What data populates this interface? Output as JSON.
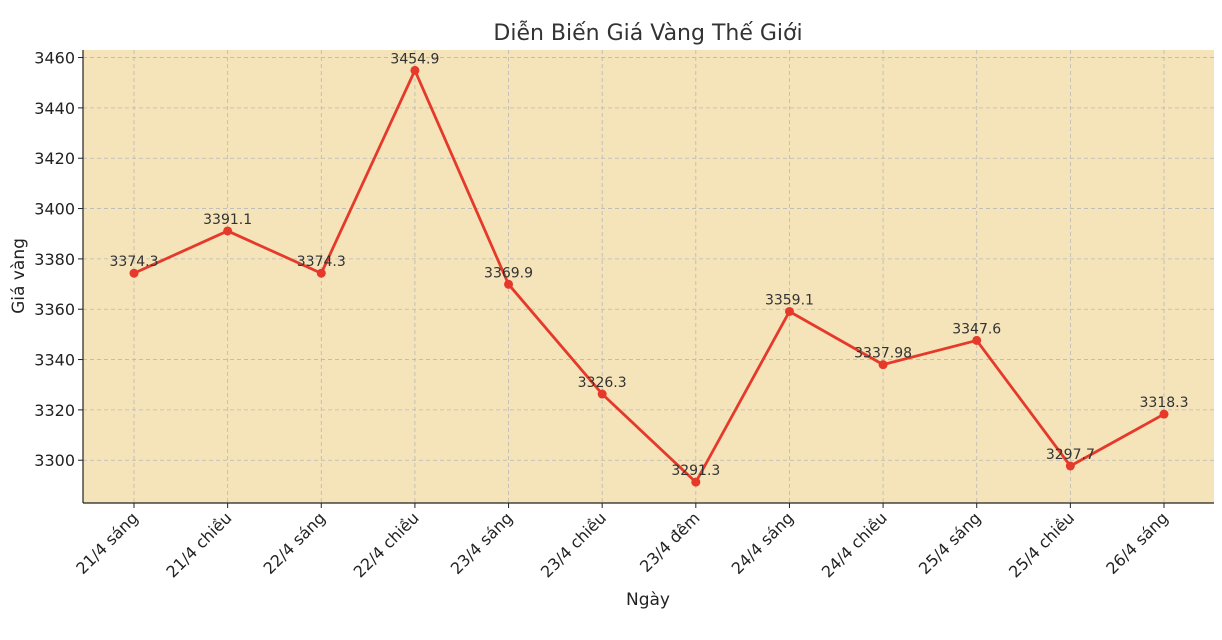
{
  "chart_data": {
    "type": "line",
    "title": "Diễn Biến Giá Vàng Thế Giới",
    "xlabel": "Ngày",
    "ylabel": "Giá vàng",
    "categories": [
      "21/4 sáng",
      "21/4 chiều",
      "22/4 sáng",
      "22/4 chiều",
      "23/4 sáng",
      "23/4 chiều",
      "23/4 đêm",
      "24/4 sáng",
      "24/4 chiều",
      "25/4 sáng",
      "25/4 chiều",
      "26/4 sáng"
    ],
    "series": [
      {
        "values": [
          3374.3,
          3391.1,
          3374.3,
          3454.9,
          3369.9,
          3326.3,
          3291.3,
          3359.1,
          3337.98,
          3347.6,
          3297.7,
          3318.3
        ]
      }
    ],
    "data_labels": [
      "3374.3",
      "3391.1",
      "3374.3",
      "3454.9",
      "3369.9",
      "3326.3",
      "3291.3",
      "3359.1",
      "3337.98",
      "3347.6",
      "3297.7",
      "3318.3"
    ],
    "ylim": [
      3283,
      3463
    ],
    "yticks": [
      3300,
      3320,
      3340,
      3360,
      3380,
      3400,
      3420,
      3440,
      3460
    ],
    "grid": true,
    "line_color": "#e53a2b",
    "plot_background": "#f5e3b9"
  }
}
